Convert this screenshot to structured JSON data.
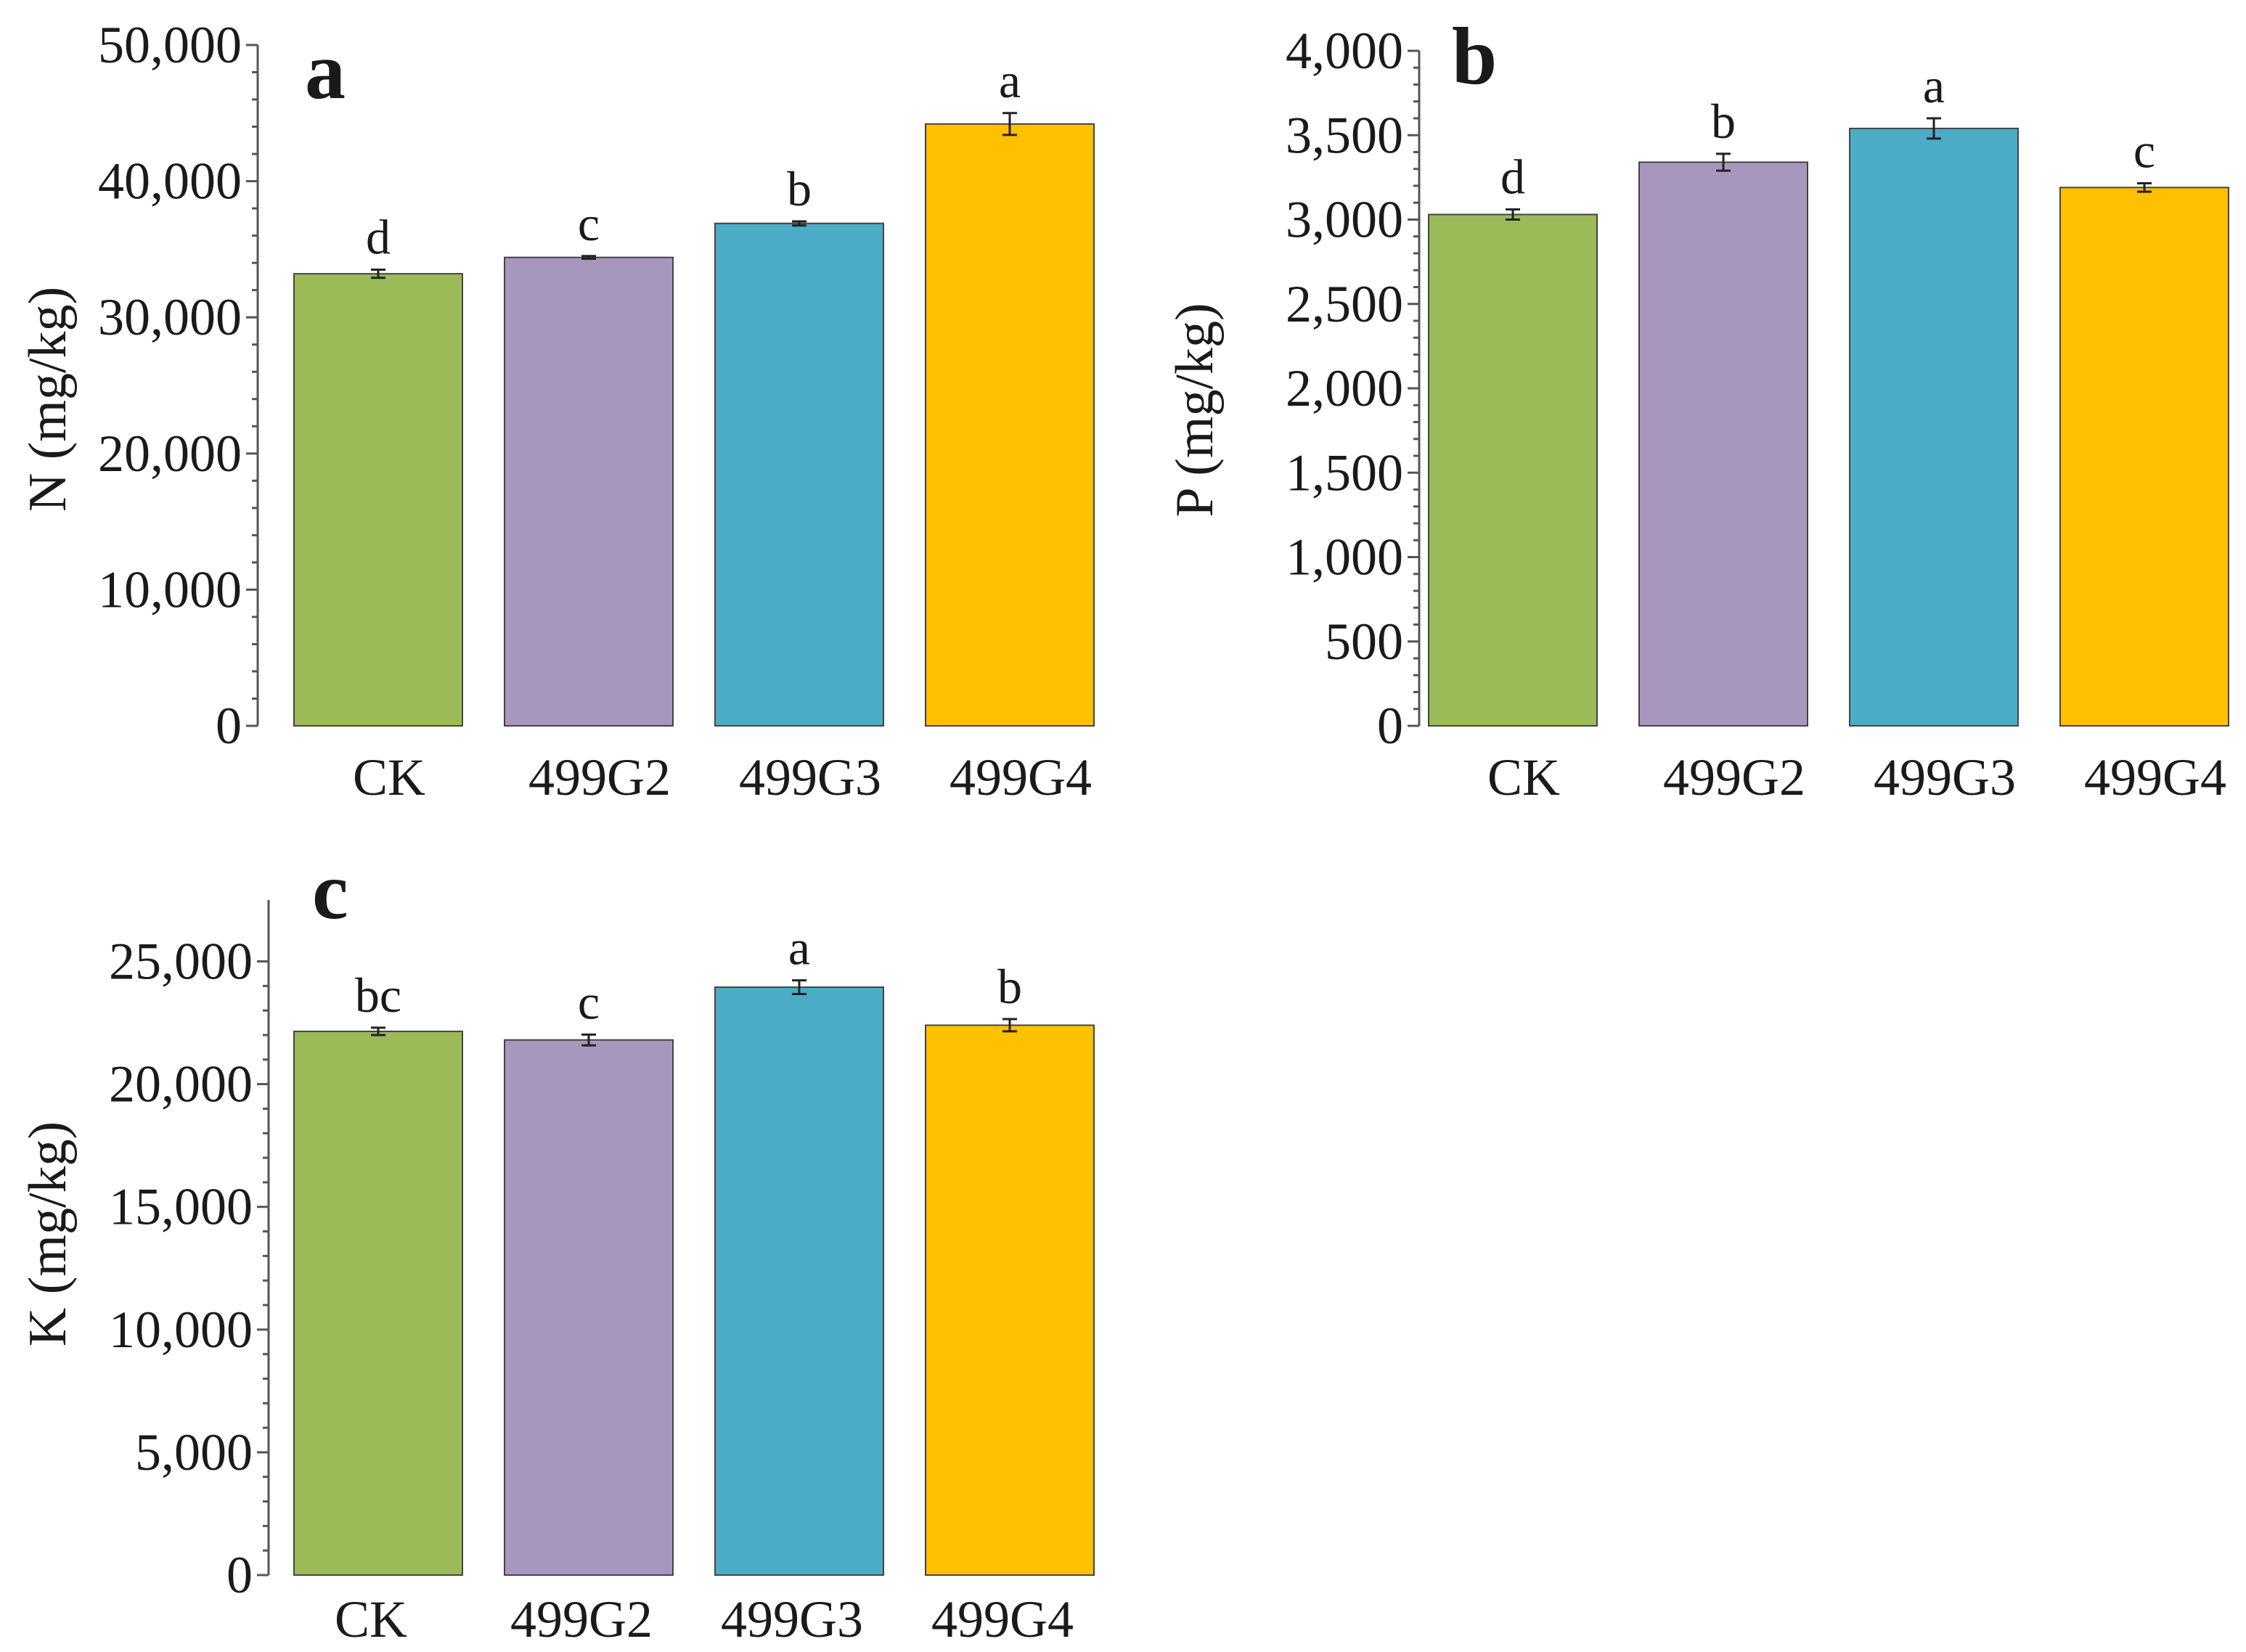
{
  "chart_data": [
    {
      "type": "bar",
      "panel": "a",
      "title": "",
      "xlabel": "",
      "ylabel": "N (mg/kg)",
      "ylim": [
        0,
        50000
      ],
      "yticks": [
        0,
        10000,
        20000,
        30000,
        40000,
        50000
      ],
      "ytick_labels": [
        "0",
        "10,000",
        "20,000",
        "30,000",
        "40,000",
        "50,000"
      ],
      "categories": [
        "CK",
        "499G2",
        "499G3",
        "499G4"
      ],
      "values": [
        33200,
        34400,
        36900,
        44200
      ],
      "errors": [
        300,
        100,
        150,
        800
      ],
      "significance": [
        "d",
        "c",
        "b",
        "a"
      ],
      "colors": [
        "#9bbb59",
        "#a797be",
        "#4bacc6",
        "#ffc000"
      ],
      "grid": false,
      "legend": "none"
    },
    {
      "type": "bar",
      "panel": "b",
      "title": "",
      "xlabel": "",
      "ylabel": "P (mg/kg)",
      "ylim": [
        0,
        4000
      ],
      "yticks": [
        0,
        500,
        1000,
        1500,
        2000,
        2500,
        3000,
        3500,
        4000
      ],
      "ytick_labels": [
        "0",
        "500",
        "1,000",
        "1,500",
        "2,000",
        "2,500",
        "3,000",
        "3,500",
        "4,000"
      ],
      "categories": [
        "CK",
        "499G2",
        "499G3",
        "499G4"
      ],
      "values": [
        3030,
        3340,
        3540,
        3190
      ],
      "errors": [
        30,
        50,
        60,
        25
      ],
      "significance": [
        "d",
        "b",
        "a",
        "c"
      ],
      "colors": [
        "#9bbb59",
        "#a797be",
        "#4bacc6",
        "#ffc000"
      ],
      "grid": false,
      "legend": "none"
    },
    {
      "type": "bar",
      "panel": "c",
      "title": "",
      "xlabel": "",
      "ylabel": "K (mg/kg)",
      "ylim": [
        0,
        27500
      ],
      "yticks": [
        0,
        5000,
        10000,
        15000,
        20000,
        25000
      ],
      "ytick_labels": [
        "0",
        "5,000",
        "10,000",
        "15,000",
        "20,000",
        "25,000"
      ],
      "categories": [
        "CK",
        "499G2",
        "499G3",
        "499G4"
      ],
      "values": [
        22150,
        21800,
        23950,
        22400
      ],
      "errors": [
        150,
        220,
        280,
        250
      ],
      "significance": [
        "bc",
        "c",
        "a",
        "b"
      ],
      "colors": [
        "#9bbb59",
        "#a797be",
        "#4bacc6",
        "#ffc000"
      ],
      "grid": false,
      "legend": "none"
    }
  ]
}
